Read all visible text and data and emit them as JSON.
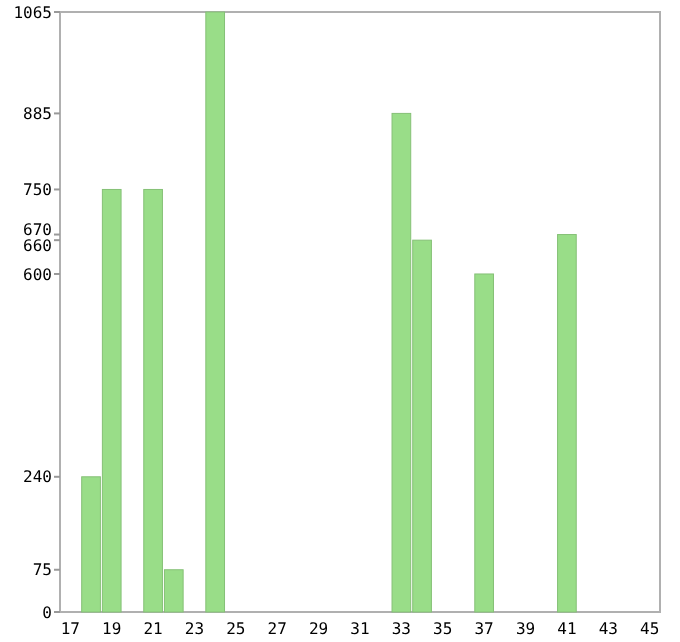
{
  "chart_data": {
    "type": "bar",
    "categories": [
      "17",
      null,
      "19",
      null,
      "21",
      null,
      "23",
      null,
      "25",
      null,
      "27",
      null,
      "29",
      null,
      "31",
      null,
      "33",
      null,
      "35",
      null,
      "37",
      null,
      "39",
      null,
      "41",
      null,
      "43",
      null,
      "45"
    ],
    "values": [
      null,
      240,
      750,
      null,
      750,
      75,
      null,
      1065,
      null,
      null,
      null,
      null,
      null,
      null,
      null,
      null,
      885,
      660,
      null,
      null,
      600,
      null,
      null,
      null,
      670,
      null,
      null,
      null,
      null
    ],
    "color": "#99dd88",
    "ylim": [
      0,
      1065
    ],
    "yticks": [
      0,
      75,
      240,
      600,
      660,
      670,
      750,
      885,
      1065
    ],
    "grid": false
  }
}
